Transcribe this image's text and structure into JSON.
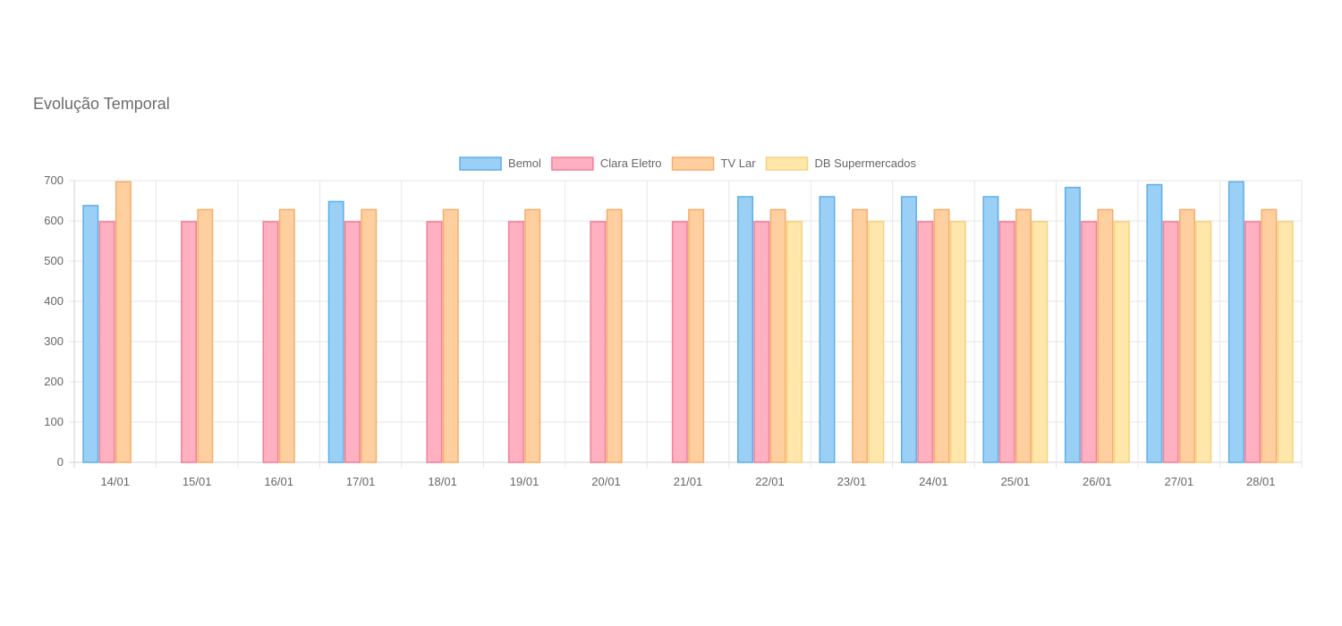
{
  "card": {
    "title": "Evolução Temporal"
  },
  "chart_data": {
    "type": "bar",
    "categories": [
      "14/01",
      "15/01",
      "16/01",
      "17/01",
      "18/01",
      "19/01",
      "20/01",
      "21/01",
      "22/01",
      "23/01",
      "24/01",
      "25/01",
      "26/01",
      "27/01",
      "28/01"
    ],
    "series": [
      {
        "name": "Bemol",
        "fill": "#9ad0f5",
        "stroke": "#5eade8",
        "values": [
          638,
          null,
          null,
          648,
          null,
          null,
          null,
          null,
          660,
          660,
          660,
          660,
          683,
          690,
          697
        ]
      },
      {
        "name": "Clara Eletro",
        "fill": "#ffb1c1",
        "stroke": "#f37e97",
        "values": [
          598,
          598,
          598,
          598,
          598,
          598,
          598,
          598,
          598,
          null,
          598,
          598,
          598,
          598,
          598
        ]
      },
      {
        "name": "TV Lar",
        "fill": "#ffcf9f",
        "stroke": "#f5ad6a",
        "values": [
          697,
          628,
          628,
          628,
          628,
          628,
          628,
          628,
          628,
          628,
          628,
          628,
          628,
          628,
          628
        ]
      },
      {
        "name": "DB Supermercados",
        "fill": "#ffe6aa",
        "stroke": "#f5d27e",
        "values": [
          null,
          null,
          null,
          null,
          null,
          null,
          null,
          null,
          598,
          598,
          598,
          598,
          598,
          598,
          598
        ]
      }
    ],
    "ylim": [
      0,
      700
    ],
    "yticks": [
      0,
      100,
      200,
      300,
      400,
      500,
      600,
      700
    ],
    "legend_position": "top",
    "grid": true
  }
}
